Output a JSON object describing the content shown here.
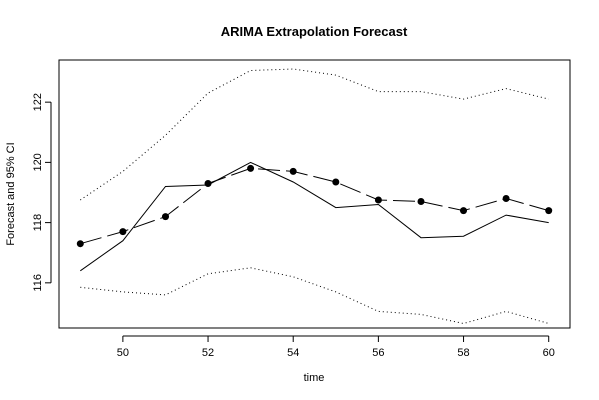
{
  "chart_data": {
    "type": "line",
    "title": "ARIMA Extrapolation Forecast",
    "xlabel": "time",
    "ylabel": "Forecast and 95% CI",
    "xlim": [
      48.5,
      60.5
    ],
    "ylim": [
      114.5,
      123.4
    ],
    "x_ticks": [
      50,
      52,
      54,
      56,
      58,
      60
    ],
    "y_ticks": [
      116,
      118,
      120,
      122
    ],
    "x": [
      49,
      50,
      51,
      52,
      53,
      54,
      55,
      56,
      57,
      58,
      59,
      60
    ],
    "series": [
      {
        "style": "solid-dashed-with-points",
        "values": [
          117.3,
          117.7,
          118.2,
          119.3,
          119.8,
          119.7,
          119.35,
          118.75,
          118.7,
          118.4,
          118.8,
          118.4
        ]
      },
      {
        "style": "solid",
        "values": [
          116.4,
          117.4,
          119.2,
          119.25,
          120.0,
          119.35,
          118.5,
          118.6,
          117.5,
          117.55,
          118.25,
          118.0
        ]
      },
      {
        "style": "dotted",
        "values": [
          118.75,
          119.7,
          120.9,
          122.3,
          123.05,
          123.1,
          122.9,
          122.35,
          122.35,
          122.1,
          122.45,
          122.1
        ]
      },
      {
        "style": "dotted",
        "values": [
          115.85,
          115.7,
          115.6,
          116.3,
          116.5,
          116.2,
          115.7,
          115.05,
          114.95,
          114.65,
          115.05,
          114.65
        ]
      }
    ],
    "grid": false,
    "legend": "none"
  }
}
